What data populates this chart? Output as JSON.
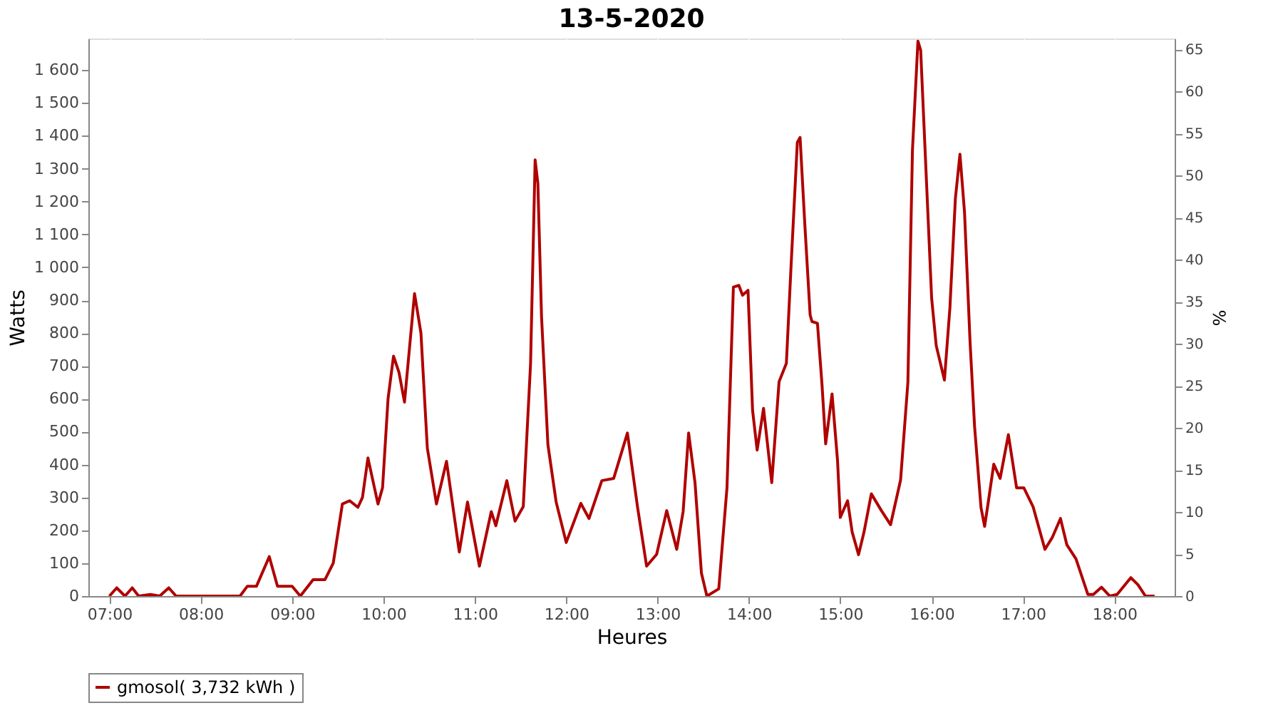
{
  "chart_data": {
    "type": "line",
    "title": "13-5-2020",
    "xlabel": "Heures",
    "ylabel": "Watts",
    "y2label": "%",
    "xlim": [
      6.77,
      18.66
    ],
    "xticks": [
      {
        "value": 7,
        "label": "07:00"
      },
      {
        "value": 8,
        "label": "08:00"
      },
      {
        "value": 9,
        "label": "09:00"
      },
      {
        "value": 10,
        "label": "10:00"
      },
      {
        "value": 11,
        "label": "11:00"
      },
      {
        "value": 12,
        "label": "12:00"
      },
      {
        "value": 13,
        "label": "13:00"
      },
      {
        "value": 14,
        "label": "14:00"
      },
      {
        "value": 15,
        "label": "15:00"
      },
      {
        "value": 16,
        "label": "16:00"
      },
      {
        "value": 17,
        "label": "17:00"
      },
      {
        "value": 18,
        "label": "18:00"
      }
    ],
    "ylim": [
      0,
      1696
    ],
    "yticks": [
      0,
      100,
      200,
      300,
      400,
      500,
      600,
      700,
      800,
      900,
      {
        "value": 1000,
        "label": "1 000"
      },
      {
        "value": 1100,
        "label": "1 100"
      },
      {
        "value": 1200,
        "label": "1 200"
      },
      {
        "value": 1300,
        "label": "1 300"
      },
      {
        "value": 1400,
        "label": "1 400"
      },
      {
        "value": 1500,
        "label": "1 500"
      },
      {
        "value": 1600,
        "label": "1 600"
      }
    ],
    "y2lim": [
      0,
      66.3
    ],
    "y2ticks": [
      0,
      5,
      10,
      15,
      20,
      25,
      30,
      35,
      40,
      45,
      50,
      55,
      60,
      65
    ],
    "grid": true,
    "legend": "bottom",
    "marker": "none",
    "line_style": "solid",
    "series": [
      {
        "name": "gmosol( 3,732 kWh )",
        "color": "#b00000",
        "x": [
          7.0,
          7.08,
          7.17,
          7.25,
          7.32,
          7.45,
          7.55,
          7.65,
          7.73,
          8.43,
          8.51,
          8.61,
          8.75,
          8.84,
          9.0,
          9.09,
          9.23,
          9.36,
          9.45,
          9.55,
          9.63,
          9.72,
          9.77,
          9.83,
          9.94,
          9.99,
          10.05,
          10.11,
          10.17,
          10.23,
          10.3,
          10.34,
          10.41,
          10.48,
          10.58,
          10.69,
          10.83,
          10.92,
          11.05,
          11.18,
          11.23,
          11.35,
          11.44,
          11.53,
          11.61,
          11.66,
          11.69,
          11.73,
          11.8,
          11.89,
          12.0,
          12.16,
          12.25,
          12.39,
          12.52,
          12.67,
          12.78,
          12.88,
          12.99,
          13.1,
          13.21,
          13.28,
          13.34,
          13.41,
          13.48,
          13.54,
          13.67,
          13.76,
          13.83,
          13.89,
          13.93,
          13.99,
          14.04,
          14.09,
          14.16,
          14.25,
          14.33,
          14.41,
          14.46,
          14.53,
          14.56,
          14.61,
          14.67,
          14.69,
          14.75,
          14.8,
          14.84,
          14.91,
          14.97,
          15.0,
          15.08,
          15.13,
          15.2,
          15.26,
          15.34,
          15.45,
          15.55,
          15.66,
          15.74,
          15.79,
          15.85,
          15.88,
          15.94,
          16.0,
          16.05,
          16.14,
          16.2,
          16.26,
          16.31,
          16.36,
          16.42,
          16.47,
          16.54,
          16.58,
          16.62,
          16.68,
          16.75,
          16.84,
          16.93,
          17.01,
          17.11,
          17.24,
          17.32,
          17.41,
          17.48,
          17.58,
          17.71,
          17.77,
          17.86,
          17.95,
          18.03,
          18.18,
          18.26,
          18.34,
          18.44
        ],
        "values": [
          0,
          25,
          0,
          25,
          0,
          5,
          0,
          25,
          0,
          0,
          30,
          30,
          120,
          30,
          30,
          0,
          50,
          50,
          100,
          280,
          290,
          270,
          300,
          420,
          280,
          330,
          600,
          730,
          680,
          590,
          800,
          920,
          800,
          450,
          280,
          410,
          134,
          286,
          91,
          257,
          214,
          351,
          228,
          272,
          707,
          1327,
          1255,
          850,
          460,
          286,
          163,
          282,
          236,
          351,
          358,
          496,
          272,
          91,
          127,
          260,
          142,
          257,
          496,
          345,
          70,
          0,
          22,
          330,
          940,
          945,
          915,
          930,
          565,
          444,
          571,
          345,
          652,
          708,
          997,
          1380,
          1395,
          1140,
          855,
          835,
          830,
          643,
          463,
          615,
          412,
          239,
          290,
          195,
          126,
          195,
          311,
          260,
          217,
          353,
          650,
          1356,
          1688,
          1660,
          1283,
          906,
          762,
          657,
          877,
          1210,
          1344,
          1167,
          776,
          516,
          270,
          212,
          286,
          401,
          358,
          491,
          329,
          329,
          272,
          142,
          178,
          236,
          156,
          113,
          5,
          5,
          27,
          0,
          5,
          56,
          34,
          0,
          0
        ]
      }
    ]
  }
}
